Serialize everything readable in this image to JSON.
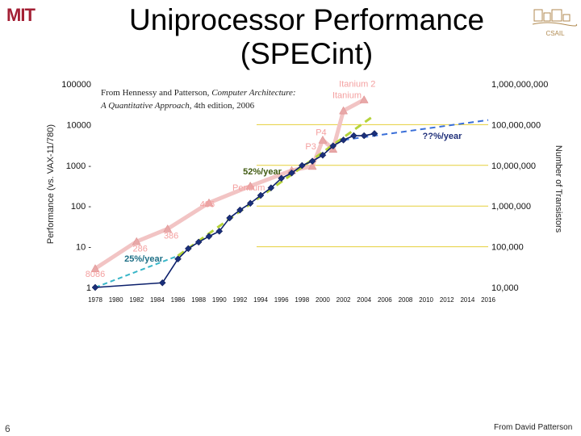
{
  "slide": {
    "title_line1": "Uniprocessor Performance",
    "title_line2": "(SPECint)",
    "page_number": "6",
    "credit": "From David Patterson",
    "logo_left": "MIT",
    "logo_right": "CSAIL"
  },
  "citation": {
    "line1_prefix": "From Hennessy and Patterson, ",
    "line1_italic": "Computer Architecture:",
    "line2_italic": "A Quantitative Approach",
    "line2_suffix": ", 4th edition, 2006"
  },
  "colors": {
    "performance_line": "#0b1f6b",
    "performance_marker": "#1a2f7a",
    "transistor_line": "#f2c4c4",
    "transistor_marker": "#e8a8a8",
    "trend_25": "#39b6c8",
    "trend_52": "#b5d33a",
    "trend_future": "#3a6fd8",
    "label_pink": "#f4a0a0",
    "gridline": "#e6cf3a"
  },
  "chart_data": {
    "type": "line",
    "title": "",
    "xlabel": "",
    "ylabel": "Performance (vs. VAX-11/780)",
    "y2label": "Number of Transistors",
    "y_scale": "log",
    "ylim": [
      1,
      100000
    ],
    "y2lim": [
      10000,
      1000000000
    ],
    "xlim": [
      1978,
      2016
    ],
    "x_ticks": [
      1978,
      1980,
      1982,
      1984,
      1986,
      1988,
      1990,
      1992,
      1994,
      1996,
      1998,
      2000,
      2002,
      2004,
      2006,
      2008,
      2010,
      2012,
      2014,
      2016
    ],
    "x_tick_labels": [
      "1978",
      "1980",
      "1982",
      "1984",
      "1986",
      "1988",
      "1990",
      "1992",
      "1994",
      "1996",
      "1998",
      "2000",
      "2002",
      "2004",
      "2006",
      "2008",
      "2010",
      "2012",
      "2014",
      "2016"
    ],
    "y_ticks": [
      1,
      10,
      100,
      1000,
      10000,
      100000
    ],
    "y_tick_labels": [
      "1",
      "10 -",
      "100 -",
      "1000 -",
      "10000",
      "100000"
    ],
    "y2_ticks": [
      10000,
      100000,
      1000000,
      10000000,
      100000000,
      1000000000
    ],
    "y2_tick_labels": [
      "10,000",
      "100,000",
      "1,000,000",
      "10,000,000",
      "100,000,000",
      "1,000,000,000"
    ],
    "grid": true,
    "series": [
      {
        "key": "performance",
        "x": [
          1978,
          1984.5,
          1986,
          1987,
          1988,
          1989,
          1990,
          1991,
          1992,
          1993,
          1994,
          1995,
          1996,
          1997,
          1998,
          1999,
          2000,
          2001,
          2002,
          2003,
          2004,
          2005
        ],
        "y": [
          1,
          1.3,
          5,
          9,
          13,
          18,
          24,
          51,
          80,
          117,
          183,
          280,
          481,
          649,
          993,
          1267,
          1779,
          3016,
          4195,
          5364,
          5364,
          6043
        ]
      },
      {
        "key": "transistors",
        "axis": "y2",
        "x": [
          1978,
          1982,
          1985,
          1989,
          1993,
          1997,
          1999,
          2000,
          2001,
          2002,
          2004
        ],
        "y": [
          29000,
          134000,
          275000,
          1200000,
          3100000,
          7500000,
          9500000,
          42000000,
          25000000,
          220000000,
          410000000
        ]
      },
      {
        "key": "trend-25",
        "name": "25%/year",
        "x": [
          1978,
          1986
        ],
        "y": [
          1,
          6
        ]
      },
      {
        "key": "trend-52",
        "name": "52%/year",
        "x": [
          1986,
          2005
        ],
        "y": [
          6,
          17000
        ]
      },
      {
        "key": "trend-future",
        "name": "??%/year",
        "x": [
          2002,
          2016
        ],
        "y": [
          4195,
          13000
        ]
      }
    ],
    "annotations": [
      {
        "text": "8086",
        "x": 1978,
        "y": 1.8
      },
      {
        "text": "286",
        "x": 1982.5,
        "y": 7.6
      },
      {
        "text": "386",
        "x": 1985.5,
        "y": 16
      },
      {
        "text": "486",
        "x": 1989,
        "y": 95
      },
      {
        "text": "Pentium",
        "x": 1993,
        "y": 240
      },
      {
        "text": "P3",
        "x": 1999,
        "y": 2450
      },
      {
        "text": "P4",
        "x": 2000,
        "y": 5500
      },
      {
        "text": "Itanium",
        "x": 2002.5,
        "y": 45000
      },
      {
        "text": "Itanium 2",
        "x": 2003.5,
        "y": 85000
      }
    ],
    "trend_labels": [
      {
        "text": "25%/year"
      },
      {
        "text": "52%/year"
      },
      {
        "text": "??%/year"
      }
    ]
  }
}
